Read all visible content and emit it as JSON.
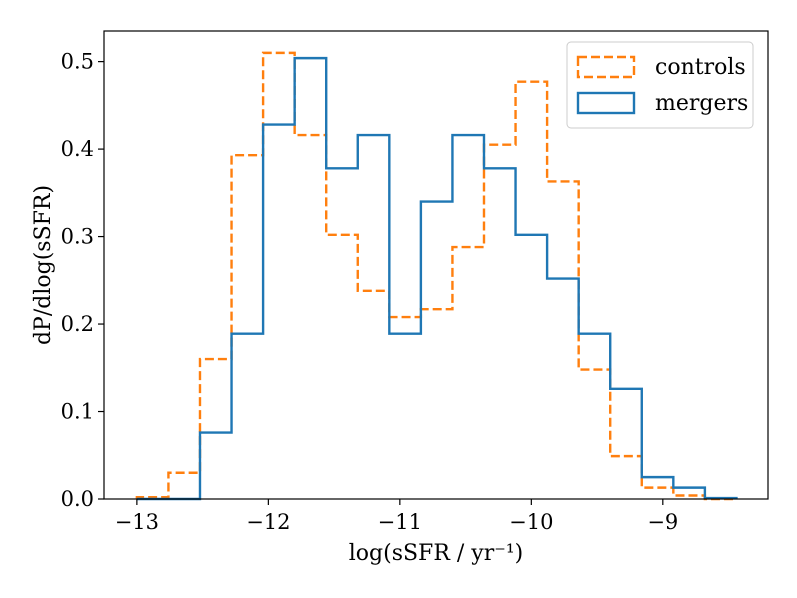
{
  "chart_data": {
    "type": "histogram",
    "title": "",
    "xlabel": "log(sSFR / yr⁻¹)",
    "ylabel": "dP/dlog(sSFR)",
    "xlim": [
      -13.25,
      -8.2
    ],
    "ylim": [
      0.0,
      0.535
    ],
    "grid": false,
    "legend_position": "top-right",
    "x_ticks": [
      -13,
      -12,
      -11,
      -10,
      -9
    ],
    "x_tick_labels": [
      "−13",
      "−12",
      "−11",
      "−10",
      "−9"
    ],
    "y_ticks": [
      0.0,
      0.1,
      0.2,
      0.3,
      0.4,
      0.5
    ],
    "y_tick_labels": [
      "0.0",
      "0.1",
      "0.2",
      "0.3",
      "0.4",
      "0.5"
    ],
    "bin_edges": [
      -13.0,
      -12.76,
      -12.52,
      -12.28,
      -12.04,
      -11.8,
      -11.56,
      -11.32,
      -11.08,
      -10.84,
      -10.6,
      -10.36,
      -10.12,
      -9.88,
      -9.64,
      -9.4,
      -9.16,
      -8.92,
      -8.68,
      -8.44
    ],
    "series": [
      {
        "name": "controls",
        "color": "#ff7f0e",
        "linestyle": "dashed",
        "values": [
          0.002,
          0.03,
          0.16,
          0.393,
          0.51,
          0.416,
          0.302,
          0.238,
          0.208,
          0.217,
          0.288,
          0.405,
          0.477,
          0.363,
          0.148,
          0.049,
          0.013,
          0.004,
          0.0
        ]
      },
      {
        "name": "mergers",
        "color": "#1f77b4",
        "linestyle": "solid",
        "values": [
          0.0,
          0.0,
          0.076,
          0.189,
          0.428,
          0.504,
          0.378,
          0.416,
          0.189,
          0.34,
          0.416,
          0.378,
          0.302,
          0.252,
          0.189,
          0.126,
          0.025,
          0.013,
          0.001
        ]
      }
    ]
  }
}
